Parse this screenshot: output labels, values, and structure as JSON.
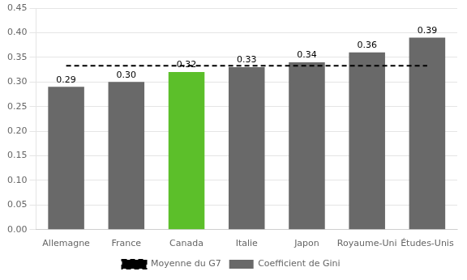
{
  "chart_data": {
    "type": "bar",
    "categories": [
      "Allemagne",
      "France",
      "Canada",
      "Italie",
      "Japon",
      "Royaume-Uni",
      "Études-Unis"
    ],
    "series": [
      {
        "name": "Coefficient de Gini",
        "type": "bar",
        "colors": [
          "#696969",
          "#696969",
          "#5cbf2a",
          "#696969",
          "#696969",
          "#696969",
          "#696969"
        ],
        "values": [
          0.29,
          0.3,
          0.32,
          0.33,
          0.34,
          0.36,
          0.39
        ],
        "value_labels": [
          "0.29",
          "0.30",
          "0.32",
          "0.33",
          "0.34",
          "0.36",
          "0.39"
        ]
      },
      {
        "name": "Moyenne du G7",
        "type": "line",
        "line_style": "dashed",
        "color": "#000000",
        "values": [
          0.333,
          0.333,
          0.333,
          0.333,
          0.333,
          0.333,
          0.333
        ]
      }
    ],
    "ylim": [
      0.0,
      0.45
    ],
    "yticks": [
      {
        "value": 0.0,
        "label": "0.00"
      },
      {
        "value": 0.05,
        "label": "0.05"
      },
      {
        "value": 0.1,
        "label": "0.10"
      },
      {
        "value": 0.15,
        "label": "0.15"
      },
      {
        "value": 0.2,
        "label": "0.20"
      },
      {
        "value": 0.25,
        "label": "0.25"
      },
      {
        "value": 0.3,
        "label": "0.30"
      },
      {
        "value": 0.35,
        "label": "0.35"
      },
      {
        "value": 0.4,
        "label": "0.40"
      },
      {
        "value": 0.45,
        "label": "0.45"
      }
    ],
    "grid": true,
    "legend": "bottom",
    "data_labels": true
  }
}
